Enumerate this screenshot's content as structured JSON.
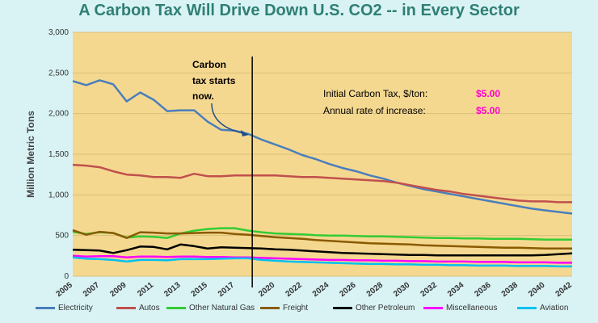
{
  "title": "A Carbon Tax Will Drive Down U.S. CO2 -- in Every Sector",
  "annotations": {
    "start_line1": "Carbon",
    "start_line2": "tax starts",
    "start_line3": "now.",
    "initial_tax_label": "Initial Carbon Tax, $/ton:",
    "initial_tax_value": "$5.00",
    "increase_label": "Annual rate of increase:",
    "increase_value": "$5.00"
  },
  "colors": {
    "plot_bg": "#f5d890",
    "page_bg": "#d9f3f5",
    "title": "#2f7f74",
    "accent_magenta": "#ff00cc"
  },
  "chart_data": {
    "type": "line",
    "ylabel": "Million Metric Tons",
    "xlabel": "",
    "xlim": [
      2005,
      2042
    ],
    "ylim": [
      0,
      3000
    ],
    "yticks": [
      0,
      500,
      1000,
      1500,
      2000,
      2500,
      3000
    ],
    "ytick_labels": [
      "0",
      "500",
      "1,000",
      "1,500",
      "2,000",
      "2,500",
      "3,000"
    ],
    "xticks": [
      2005,
      2007,
      2009,
      2011,
      2013,
      2015,
      2017,
      2020,
      2022,
      2024,
      2026,
      2028,
      2030,
      2032,
      2034,
      2036,
      2038,
      2040,
      2042
    ],
    "tax_start_year": 2018.3,
    "legend_position": "bottom",
    "x": [
      2005,
      2006,
      2007,
      2008,
      2009,
      2010,
      2011,
      2012,
      2013,
      2014,
      2015,
      2016,
      2017,
      2018,
      2019,
      2020,
      2021,
      2022,
      2023,
      2024,
      2025,
      2026,
      2027,
      2028,
      2029,
      2030,
      2031,
      2032,
      2033,
      2034,
      2035,
      2036,
      2037,
      2038,
      2039,
      2040,
      2041,
      2042
    ],
    "series": [
      {
        "name": "Electricity",
        "color": "#4a7ebb",
        "values": [
          2400,
          2350,
          2410,
          2360,
          2150,
          2260,
          2170,
          2030,
          2040,
          2040,
          1900,
          1800,
          1790,
          1750,
          1680,
          1620,
          1560,
          1490,
          1440,
          1380,
          1330,
          1290,
          1240,
          1200,
          1150,
          1110,
          1070,
          1040,
          1010,
          980,
          950,
          920,
          890,
          860,
          830,
          810,
          790,
          770
        ]
      },
      {
        "name": "Autos",
        "color": "#c0504d",
        "values": [
          1370,
          1360,
          1340,
          1290,
          1250,
          1240,
          1220,
          1220,
          1210,
          1260,
          1230,
          1230,
          1240,
          1240,
          1240,
          1240,
          1230,
          1220,
          1220,
          1210,
          1200,
          1190,
          1180,
          1170,
          1150,
          1120,
          1090,
          1060,
          1040,
          1010,
          990,
          970,
          950,
          930,
          920,
          920,
          910,
          910
        ]
      },
      {
        "name": "Other Natural Gas",
        "color": "#33cc33",
        "values": [
          545,
          520,
          540,
          530,
          475,
          490,
          485,
          470,
          525,
          560,
          580,
          590,
          590,
          560,
          540,
          525,
          520,
          515,
          505,
          500,
          500,
          495,
          490,
          490,
          485,
          480,
          475,
          470,
          470,
          465,
          465,
          460,
          460,
          460,
          455,
          450,
          450,
          450
        ]
      },
      {
        "name": "Freight",
        "color": "#8a5a00",
        "values": [
          565,
          510,
          545,
          530,
          470,
          540,
          535,
          525,
          525,
          530,
          535,
          535,
          520,
          510,
          495,
          480,
          470,
          460,
          445,
          435,
          425,
          415,
          405,
          400,
          395,
          390,
          380,
          375,
          370,
          365,
          360,
          355,
          350,
          350,
          345,
          340,
          340,
          340
        ]
      },
      {
        "name": "Other Petroleum",
        "color": "#000000",
        "values": [
          325,
          320,
          315,
          285,
          320,
          365,
          360,
          330,
          390,
          370,
          340,
          355,
          350,
          345,
          340,
          330,
          325,
          315,
          305,
          295,
          285,
          280,
          275,
          270,
          265,
          260,
          260,
          255,
          255,
          255,
          255,
          255,
          255,
          255,
          255,
          260,
          270,
          280
        ]
      },
      {
        "name": "Miscellaneous",
        "color": "#ff00ff",
        "values": [
          250,
          240,
          245,
          245,
          230,
          240,
          240,
          235,
          240,
          240,
          235,
          235,
          230,
          230,
          225,
          220,
          215,
          210,
          205,
          200,
          200,
          195,
          195,
          190,
          190,
          185,
          185,
          180,
          180,
          180,
          175,
          175,
          175,
          170,
          170,
          170,
          165,
          165
        ]
      },
      {
        "name": "Aviation",
        "color": "#00c0f0",
        "values": [
          230,
          215,
          210,
          200,
          180,
          200,
          200,
          195,
          210,
          210,
          210,
          215,
          220,
          220,
          200,
          190,
          180,
          175,
          170,
          165,
          160,
          155,
          150,
          150,
          145,
          145,
          140,
          140,
          135,
          135,
          130,
          130,
          130,
          125,
          125,
          125,
          120,
          120
        ]
      }
    ]
  }
}
